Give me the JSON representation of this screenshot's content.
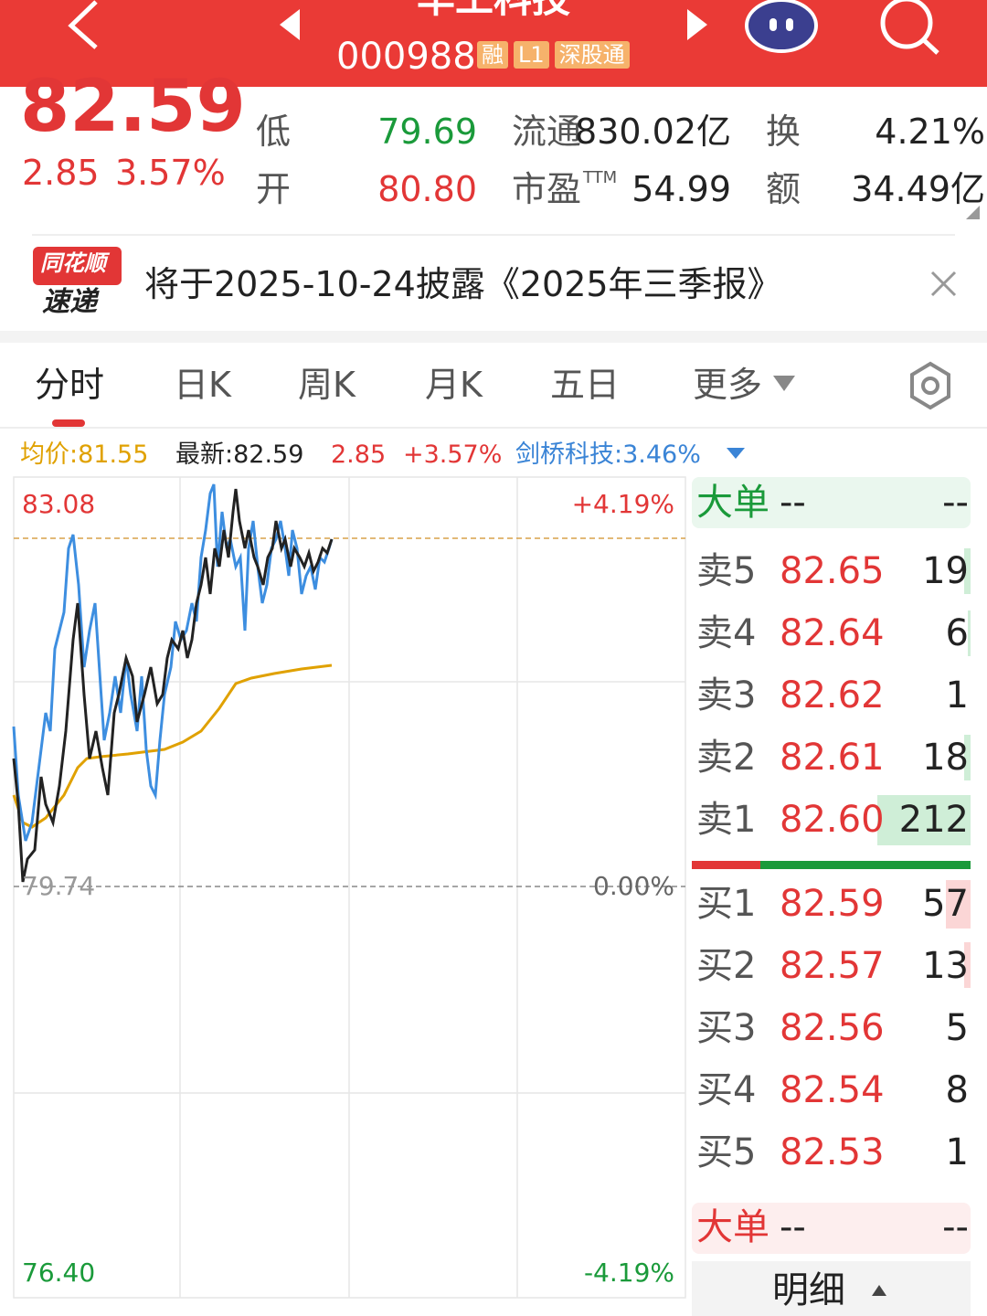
{
  "header": {
    "title": "华工科技",
    "code": "000988",
    "badges": [
      "融",
      "L1",
      "深股通"
    ]
  },
  "quote": {
    "price": "82.59",
    "change": "2.85",
    "change_pct": "3.57%"
  },
  "stats": [
    {
      "label": "低",
      "value": "79.69"
    },
    {
      "label": "流通",
      "value": "830.02亿"
    },
    {
      "label": "换",
      "value": "4.21%"
    },
    {
      "label": "开",
      "value": "80.80"
    },
    {
      "label": "市盈",
      "sup": "TTM",
      "value": "54.99"
    },
    {
      "label": "额",
      "value": "34.49亿"
    }
  ],
  "news": {
    "logo_top": "同花顺",
    "logo_bottom": "速递",
    "text": "将于2025-10-24披露《2025年三季报》"
  },
  "tabs": [
    "分时",
    "日K",
    "周K",
    "月K",
    "五日",
    "更多"
  ],
  "info": {
    "avg": "均价:81.55",
    "latest": "最新:82.59",
    "change": "2.85",
    "change_pct": "+3.57%",
    "compare": "剑桥科技:3.46%"
  },
  "axis": {
    "top_left": "83.08",
    "top_right": "+4.19%",
    "mid_left": "79.74",
    "mid_right": "0.00%",
    "bottom_left": "76.40",
    "bottom_right": "-4.19%"
  },
  "orderbook": {
    "big_top": [
      "大单",
      "--",
      "--"
    ],
    "asks": [
      [
        "卖5",
        "82.65",
        "19"
      ],
      [
        "卖4",
        "82.64",
        "6"
      ],
      [
        "卖3",
        "82.62",
        "1"
      ],
      [
        "卖2",
        "82.61",
        "18"
      ],
      [
        "卖1",
        "82.60",
        "212"
      ]
    ],
    "bids": [
      [
        "买1",
        "82.59",
        "57"
      ],
      [
        "买2",
        "82.57",
        "13"
      ],
      [
        "买3",
        "82.56",
        "5"
      ],
      [
        "买4",
        "82.54",
        "8"
      ],
      [
        "买5",
        "82.53",
        "1"
      ]
    ],
    "big_bottom": [
      "大单",
      "--",
      "--"
    ],
    "detail": "明细"
  }
}
